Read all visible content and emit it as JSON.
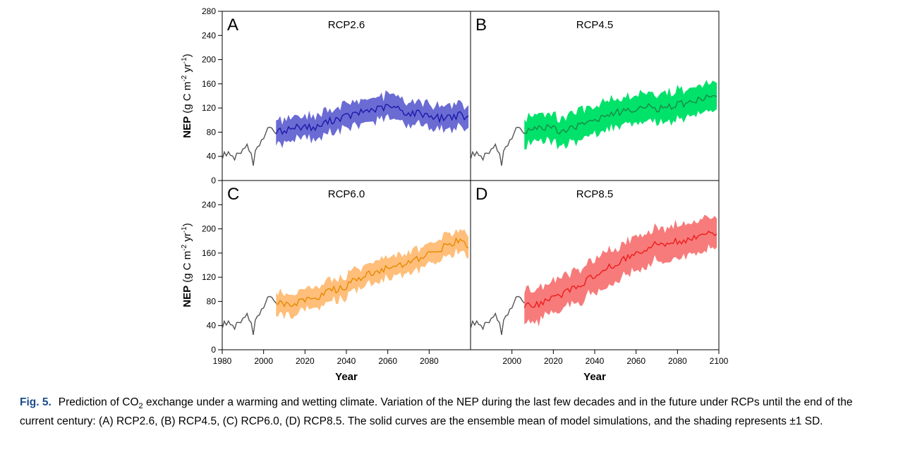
{
  "chart_data": {
    "type": "line",
    "xlabel": "Year",
    "ylabel": "NEP (g C m-2 yr-1)",
    "ylabel_parts": {
      "lead": "NEP",
      "pre": " (g C m",
      "sup1": "-2",
      "mid": " yr",
      "sup2": "-1",
      "post": ")"
    },
    "xlim": [
      1980,
      2100
    ],
    "ylim": [
      0,
      280
    ],
    "y_ticks_top": [
      "0",
      "40",
      "80",
      "120",
      "160",
      "200",
      "240",
      "280"
    ],
    "y_ticks_bottom": [
      "0",
      "40",
      "80",
      "120",
      "160",
      "200",
      "240"
    ],
    "x_ticks_left": [
      "1980",
      "2000",
      "2020",
      "2040",
      "2060",
      "2080"
    ],
    "x_ticks_right": [
      "2000",
      "2020",
      "2040",
      "2060",
      "2080",
      "2100"
    ],
    "historical": {
      "color": "#555555",
      "x": [
        1980,
        1983,
        1986,
        1989,
        1992,
        1995,
        1997,
        2000,
        2003,
        2006
      ],
      "y": [
        36,
        52,
        34,
        48,
        58,
        30,
        58,
        72,
        88,
        82
      ]
    },
    "panels": [
      {
        "letter": "A",
        "title": "RCP2.6",
        "line_color": "#1a1aa8",
        "band_color": "#6b6bd4",
        "mean": {
          "x": [
            2006,
            2010,
            2015,
            2020,
            2025,
            2030,
            2035,
            2040,
            2045,
            2050,
            2055,
            2060,
            2065,
            2070,
            2075,
            2080,
            2085,
            2090,
            2095,
            2099
          ],
          "y": [
            80,
            83,
            88,
            90,
            86,
            96,
            102,
            106,
            110,
            116,
            118,
            122,
            119,
            110,
            112,
            108,
            103,
            106,
            108,
            102
          ]
        },
        "sd": 20
      },
      {
        "letter": "B",
        "title": "RCP4.5",
        "line_color": "#1a8a45",
        "band_color": "#00e26a",
        "mean": {
          "x": [
            2006,
            2010,
            2015,
            2020,
            2025,
            2030,
            2035,
            2040,
            2045,
            2050,
            2055,
            2060,
            2065,
            2070,
            2075,
            2080,
            2085,
            2090,
            2095,
            2099
          ],
          "y": [
            82,
            85,
            88,
            85,
            82,
            88,
            95,
            102,
            105,
            112,
            116,
            120,
            122,
            118,
            122,
            126,
            128,
            133,
            140,
            135
          ]
        },
        "sd": 24
      },
      {
        "letter": "C",
        "title": "RCP6.0",
        "line_color": "#e58a00",
        "band_color": "#ffbe7a",
        "mean": {
          "x": [
            2006,
            2010,
            2015,
            2020,
            2025,
            2030,
            2035,
            2040,
            2045,
            2050,
            2055,
            2060,
            2065,
            2070,
            2075,
            2080,
            2085,
            2090,
            2095,
            2099
          ],
          "y": [
            78,
            74,
            78,
            80,
            86,
            94,
            100,
            106,
            116,
            124,
            130,
            134,
            137,
            142,
            150,
            158,
            166,
            176,
            180,
            170
          ]
        },
        "sd": 18
      },
      {
        "letter": "D",
        "title": "RCP8.5",
        "line_color": "#ee1c1c",
        "band_color": "#f77b7b",
        "mean": {
          "x": [
            2006,
            2010,
            2015,
            2020,
            2025,
            2030,
            2035,
            2040,
            2045,
            2050,
            2055,
            2060,
            2065,
            2070,
            2075,
            2080,
            2085,
            2090,
            2095,
            2099
          ],
          "y": [
            72,
            74,
            78,
            86,
            94,
            102,
            112,
            122,
            132,
            142,
            152,
            160,
            168,
            174,
            178,
            180,
            182,
            186,
            196,
            192
          ]
        },
        "sd": 28
      }
    ]
  },
  "caption": {
    "label": "Fig. 5.",
    "text_before_sub": "Prediction of CO",
    "sub": "2",
    "text_after_sub": " exchange under a warming and wetting climate. Variation of the NEP during the last few decades and in the future under RCPs until the end of the current century: (A) RCP2.6, (B) RCP4.5, (C) RCP6.0, (D) RCP8.5. The solid curves are the ensemble mean of model simulations, and the shading represents ±1 SD."
  }
}
